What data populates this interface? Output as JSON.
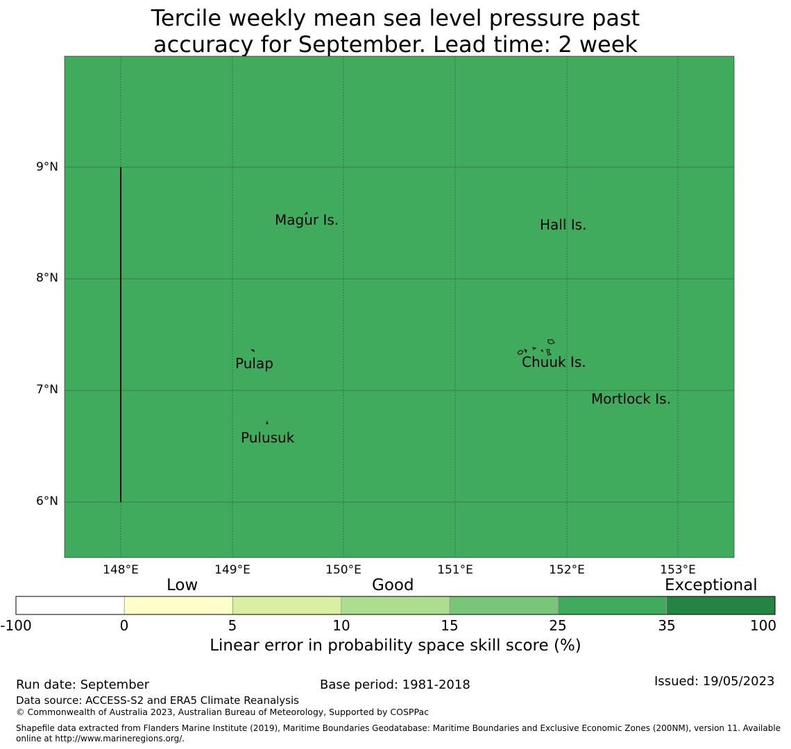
{
  "title": {
    "line1": "Tercile weekly mean sea level pressure past",
    "line2": "accuracy for September. Lead time: 2 week"
  },
  "map": {
    "background_color": "#41ab5d",
    "lat_ticks": [
      "9°N",
      "8°N",
      "7°N",
      "6°N"
    ],
    "lon_ticks": [
      "148°E",
      "149°E",
      "150°E",
      "151°E",
      "152°E",
      "153°E"
    ],
    "places": [
      {
        "name": "Magur Is.",
        "lon": 150.2,
        "lat": 8.6
      },
      {
        "name": "Hall Is.",
        "lon": 151.9,
        "lat": 8.55
      },
      {
        "name": "Pulap",
        "lon": 149.3,
        "lat": 7.3
      },
      {
        "name": "Chuuk Is.",
        "lon": 151.85,
        "lat": 7.35
      },
      {
        "name": "Mortlock Is.",
        "lon": 152.6,
        "lat": 7.0
      },
      {
        "name": "Pulusuk",
        "lon": 149.3,
        "lat": 6.65
      }
    ]
  },
  "legend": {
    "categories": {
      "low": "Low",
      "good": "Good",
      "exceptional": "Exceptional"
    },
    "bins": [
      {
        "from": -100,
        "to": 0,
        "color": "#ffffff"
      },
      {
        "from": 0,
        "to": 5,
        "color": "#ffffcc"
      },
      {
        "from": 5,
        "to": 10,
        "color": "#d9f0a3"
      },
      {
        "from": 10,
        "to": 15,
        "color": "#addd8e"
      },
      {
        "from": 15,
        "to": 25,
        "color": "#78c679"
      },
      {
        "from": 25,
        "to": 35,
        "color": "#41ab5d"
      },
      {
        "from": 35,
        "to": 100,
        "color": "#238443"
      }
    ],
    "ticks": [
      "-100",
      "0",
      "5",
      "10",
      "15",
      "25",
      "35",
      "100"
    ],
    "label": "Linear error in probability space skill score (%)"
  },
  "footer": {
    "run_date": "Run date: September",
    "base_period": "Base period: 1981-2018",
    "issued": "Issued: 19/05/2023",
    "data_source": "Data source: ACCESS-S2 and ERA5 Climate Reanalysis",
    "copyright": "© Commonwealth of Australia 2023, Australian Bureau of Meteorology, Supported by COSPPac",
    "shapefile_line1": "Shapefile data extracted from Flanders Marine Institute (2019), Maritime Boundaries Geodatabase: Maritime Boundaries and Exclusive Economic Zones (200NM), version 11. Available",
    "shapefile_line2": "online at http://www.marineregions.org/."
  }
}
